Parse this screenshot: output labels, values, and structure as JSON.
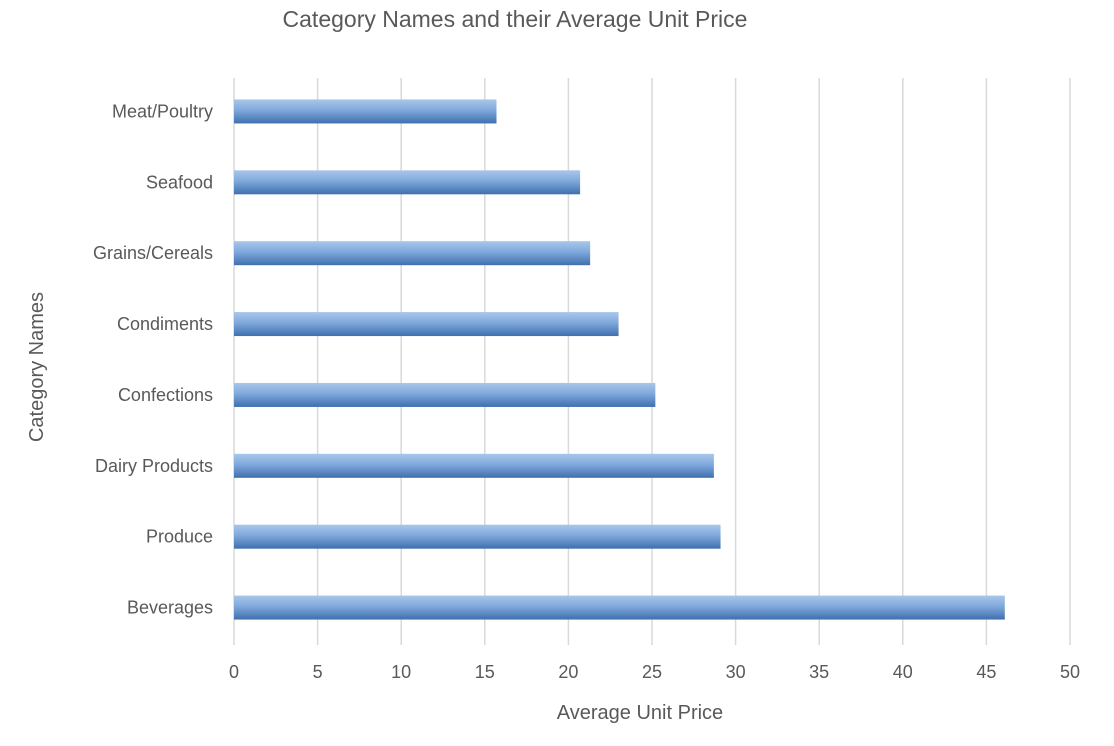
{
  "chart_data": {
    "type": "bar",
    "orientation": "horizontal",
    "title": "Category Names and their Average Unit Price",
    "xlabel": "Average Unit Price",
    "ylabel": "Category Names",
    "categories": [
      "Meat/Poultry",
      "Seafood",
      "Grains/Cereals",
      "Condiments",
      "Confections",
      "Dairy Products",
      "Produce",
      "Beverages"
    ],
    "values": [
      15.7,
      20.7,
      21.3,
      23.0,
      25.2,
      28.7,
      29.1,
      46.1
    ],
    "xlim": [
      0,
      50
    ],
    "xticks": [
      "0",
      "5",
      "10",
      "15",
      "20",
      "25",
      "30",
      "35",
      "40",
      "45",
      "50"
    ],
    "grid": true,
    "legend": "none",
    "bar_color": "#5b8fcc"
  }
}
